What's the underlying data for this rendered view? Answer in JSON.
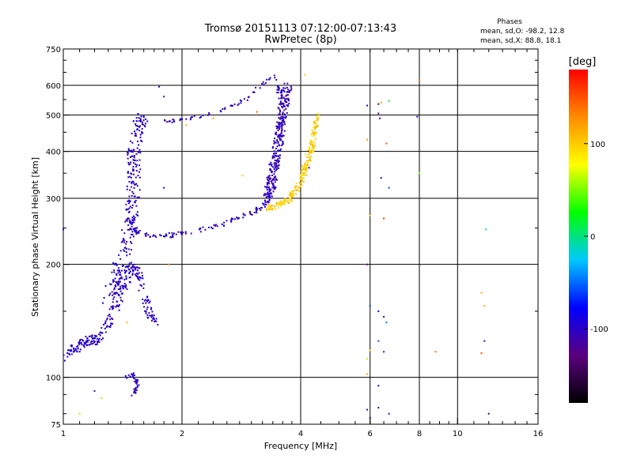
{
  "chart_data": {
    "type": "scatter",
    "title": "Tromsø 20151113 07:12:00-07:13:43",
    "subtitle": "RwPretec (8p)",
    "xlabel": "Frequency [MHz]",
    "ylabel": "Stationary phase Virtual Height [km]",
    "x_scale": "log2",
    "y_scale": "log",
    "xlim": [
      1,
      16
    ],
    "ylim": [
      75,
      750
    ],
    "x_ticks": [
      1,
      2,
      4,
      6,
      8,
      10,
      16
    ],
    "x_grid": [
      2,
      4,
      6,
      8,
      10
    ],
    "y_ticks": [
      75,
      100,
      200,
      300,
      400,
      500,
      600,
      750
    ],
    "y_grid": [
      100,
      200,
      300,
      400,
      500,
      600
    ],
    "grid": true,
    "stats": {
      "heading": "Phases",
      "line1": "mean, sd,O: -98.2, 12.8",
      "line2": "mean, sd,X:  88.8, 18.1"
    },
    "colorbar": {
      "label": "[deg]",
      "range": [
        -180,
        180
      ],
      "ticks": [
        -100,
        0,
        100
      ],
      "tick_labels": [
        "-100",
        "0",
        "100"
      ],
      "stops": [
        "#000000",
        "#5a0080",
        "#0000ff",
        "#00c8ff",
        "#00ff00",
        "#ffff00",
        "#ff8c00",
        "#ff0000"
      ]
    },
    "traces": [
      {
        "name_hidden": "",
        "phase": -100,
        "spread": 6,
        "count": 300,
        "pts": [
          [
            1.0,
            113
          ],
          [
            1.05,
            117
          ],
          [
            1.1,
            122
          ],
          [
            1.15,
            125
          ],
          [
            1.2,
            126
          ],
          [
            1.25,
            130
          ],
          [
            1.3,
            140
          ],
          [
            1.35,
            155
          ],
          [
            1.4,
            170
          ],
          [
            1.45,
            185
          ],
          [
            1.5,
            200
          ],
          [
            1.55,
            190
          ],
          [
            1.6,
            170
          ],
          [
            1.65,
            150
          ],
          [
            1.7,
            140
          ]
        ]
      },
      {
        "phase": -100,
        "spread": 8,
        "count": 260,
        "pts": [
          [
            1.3,
            160
          ],
          [
            1.35,
            180
          ],
          [
            1.4,
            200
          ],
          [
            1.45,
            230
          ],
          [
            1.48,
            260
          ],
          [
            1.5,
            300
          ],
          [
            1.52,
            340
          ],
          [
            1.5,
            380
          ],
          [
            1.52,
            420
          ],
          [
            1.55,
            470
          ],
          [
            1.6,
            490
          ]
        ]
      },
      {
        "phase": -100,
        "spread": 3,
        "count": 200,
        "pts": [
          [
            1.45,
            270
          ],
          [
            1.5,
            250
          ],
          [
            1.55,
            242
          ],
          [
            1.7,
            237
          ],
          [
            1.9,
            240
          ],
          [
            2.1,
            245
          ],
          [
            2.4,
            252
          ],
          [
            2.7,
            262
          ],
          [
            3.0,
            275
          ],
          [
            3.2,
            285
          ],
          [
            3.35,
            300
          ],
          [
            3.45,
            330
          ],
          [
            3.5,
            380
          ],
          [
            3.55,
            450
          ],
          [
            3.55,
            550
          ],
          [
            3.5,
            630
          ]
        ]
      },
      {
        "phase": -100,
        "spread": 2,
        "count": 60,
        "pts": [
          [
            1.75,
            480
          ],
          [
            2.0,
            485
          ],
          [
            2.3,
            500
          ],
          [
            2.6,
            520
          ],
          [
            2.9,
            550
          ],
          [
            3.1,
            590
          ],
          [
            3.3,
            620
          ],
          [
            3.5,
            640
          ]
        ]
      },
      {
        "phase": -105,
        "spread": 6,
        "count": 260,
        "pts": [
          [
            3.3,
            300
          ],
          [
            3.35,
            320
          ],
          [
            3.4,
            350
          ],
          [
            3.45,
            380
          ],
          [
            3.5,
            420
          ],
          [
            3.55,
            460
          ],
          [
            3.6,
            500
          ],
          [
            3.65,
            540
          ],
          [
            3.7,
            600
          ]
        ]
      },
      {
        "phase": 100,
        "spread": 4,
        "count": 230,
        "pts": [
          [
            3.3,
            283
          ],
          [
            3.5,
            288
          ],
          [
            3.7,
            295
          ],
          [
            3.85,
            310
          ],
          [
            4.0,
            335
          ],
          [
            4.1,
            360
          ],
          [
            4.2,
            390
          ],
          [
            4.3,
            420
          ],
          [
            4.35,
            460
          ],
          [
            4.4,
            510
          ]
        ]
      },
      {
        "phase": -100,
        "spread": 2,
        "count": 40,
        "pts": [
          [
            1.45,
            100
          ],
          [
            1.5,
            102
          ],
          [
            1.55,
            95
          ],
          [
            1.5,
            90
          ]
        ]
      }
    ],
    "isolated": [
      [
        5.9,
        530,
        -100
      ],
      [
        6.3,
        535,
        -110
      ],
      [
        6.4,
        540,
        120
      ],
      [
        6.7,
        545,
        20
      ],
      [
        6.3,
        505,
        -110
      ],
      [
        6.35,
        490,
        -105
      ],
      [
        6.6,
        420,
        150
      ],
      [
        6.4,
        340,
        -100
      ],
      [
        6.7,
        320,
        -60
      ],
      [
        6.5,
        265,
        160
      ],
      [
        6.0,
        270,
        100
      ],
      [
        5.9,
        430,
        120
      ],
      [
        5.9,
        200,
        -130
      ],
      [
        6.0,
        155,
        -60
      ],
      [
        6.3,
        150,
        -90
      ],
      [
        6.5,
        145,
        -110
      ],
      [
        6.6,
        140,
        -50
      ],
      [
        6.3,
        125,
        -60
      ],
      [
        6.0,
        118,
        90
      ],
      [
        5.9,
        112,
        60
      ],
      [
        6.5,
        117,
        -70
      ],
      [
        5.9,
        102,
        120
      ],
      [
        6.3,
        95,
        -100
      ],
      [
        5.9,
        82,
        -110
      ],
      [
        6.0,
        78,
        -100
      ],
      [
        6.3,
        83,
        -105
      ],
      [
        6.7,
        80,
        -110
      ],
      [
        8.0,
        620,
        140
      ],
      [
        7.9,
        495,
        -100
      ],
      [
        8.0,
        350,
        50
      ],
      [
        8.8,
        117,
        140
      ],
      [
        11.5,
        168,
        120
      ],
      [
        11.7,
        155,
        110
      ],
      [
        11.7,
        125,
        -110
      ],
      [
        11.5,
        116,
        150
      ],
      [
        11.8,
        248,
        -20
      ],
      [
        12.0,
        80,
        -100
      ],
      [
        4.1,
        640,
        100
      ],
      [
        4.2,
        362,
        -100
      ],
      [
        1.8,
        320,
        -100
      ],
      [
        1.85,
        200,
        130
      ],
      [
        1.1,
        80,
        100
      ],
      [
        1.2,
        92,
        -110
      ],
      [
        1.25,
        88,
        100
      ],
      [
        1.45,
        140,
        110
      ],
      [
        2.05,
        470,
        110
      ],
      [
        2.4,
        490,
        120
      ],
      [
        2.85,
        345,
        100
      ],
      [
        3.1,
        510,
        140
      ],
      [
        1.0,
        248,
        -100
      ],
      [
        1.8,
        560,
        -110
      ],
      [
        1.75,
        595,
        -110
      ]
    ]
  }
}
